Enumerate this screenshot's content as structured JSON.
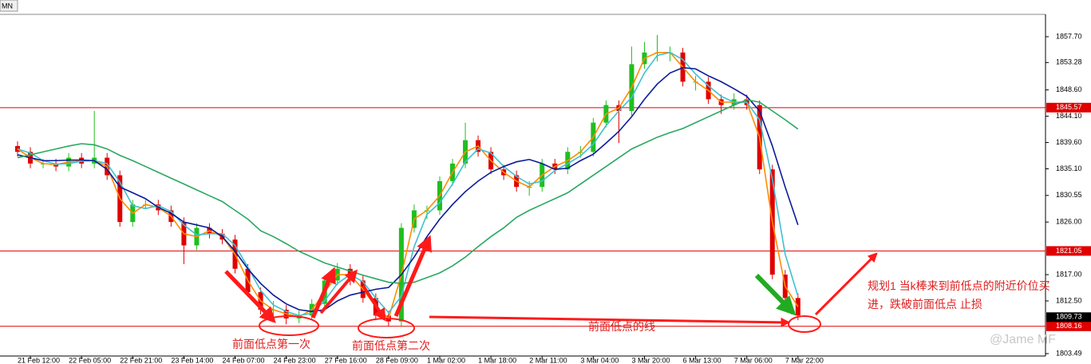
{
  "chart_data": {
    "type": "candlestick",
    "tab": "MN",
    "categories": [
      null,
      "21 Feb 12:00",
      null,
      null,
      null,
      "22 Feb 05:00",
      null,
      null,
      null,
      "22 Feb 21:00",
      null,
      null,
      null,
      "23 Feb 14:00",
      null,
      null,
      null,
      "24 Feb 07:00",
      null,
      null,
      null,
      "24 Feb 23:00",
      null,
      null,
      null,
      "27 Feb 16:00",
      null,
      null,
      null,
      "28 Feb 09:00",
      null,
      null,
      null,
      "1 Mar 02:00",
      null,
      null,
      null,
      "1 Mar 18:00",
      null,
      null,
      null,
      "2 Mar 11:00",
      null,
      null,
      null,
      "3 Mar 04:00",
      null,
      null,
      null,
      "3 Mar 20:00",
      null,
      null,
      null,
      "6 Mar 13:00",
      null,
      null,
      null,
      "7 Mar 06:00",
      null,
      null,
      null,
      "7 Mar 22:00"
    ],
    "open": [
      1839,
      1838,
      1836,
      1836,
      1835.5,
      1837,
      1836,
      1837,
      1834,
      1826,
      1829,
      1829,
      1828,
      1826,
      1822,
      1825,
      1824,
      1823,
      1818,
      1814,
      1811,
      1811,
      1809.5,
      1810,
      1812,
      1816,
      1818,
      1816,
      1813,
      1810,
      1809,
      1825,
      1828,
      1828,
      1833,
      1836,
      1840,
      1838,
      1835,
      1834,
      1832,
      1832,
      1836,
      1835,
      1838,
      1838,
      1843,
      1846,
      1845,
      1853,
      1855,
      1855,
      1855,
      1850,
      1850,
      1847,
      1846,
      1847,
      1846,
      1835,
      1817,
      1813
    ],
    "high": [
      1839.8,
      1838.8,
      1836.8,
      1836.8,
      1837.8,
      1837.8,
      1845,
      1837.8,
      1834.8,
      1829.8,
      1829.8,
      1829.8,
      1828.8,
      1826.8,
      1825.8,
      1825.8,
      1824.8,
      1823.8,
      1818.8,
      1814.8,
      1812.5,
      1811.8,
      1810.8,
      1812.8,
      1816.8,
      1819,
      1818.8,
      1816.8,
      1813.8,
      1810.8,
      1825.8,
      1829,
      1828.8,
      1833.8,
      1836.8,
      1843,
      1840.8,
      1838.8,
      1835.8,
      1834.8,
      1833,
      1836.8,
      1836.8,
      1838.8,
      1839,
      1843.8,
      1846.8,
      1846.8,
      1856,
      1856.8,
      1858,
      1856,
      1855.8,
      1851,
      1850.8,
      1847.8,
      1848,
      1847.8,
      1846.8,
      1835.8,
      1817.8,
      1813.8
    ],
    "low": [
      1837.2,
      1835.2,
      1835.2,
      1834.7,
      1834.7,
      1835.2,
      1835.2,
      1833.2,
      1825.2,
      1825.2,
      1828.2,
      1827.2,
      1825.2,
      1818.8,
      1821.2,
      1823.2,
      1822.2,
      1817.2,
      1813.2,
      1810.2,
      1809.5,
      1808.5,
      1808.7,
      1809.2,
      1811.2,
      1815.2,
      1815.2,
      1812.2,
      1809.2,
      1808.2,
      1808.2,
      1824.2,
      1826.5,
      1827.2,
      1832.2,
      1835.2,
      1837.2,
      1834.2,
      1833.2,
      1831.2,
      1830.5,
      1831.2,
      1834.2,
      1834.2,
      1837,
      1837.2,
      1842.2,
      1839.5,
      1844.2,
      1852.2,
      1853.5,
      1853.5,
      1849.2,
      1848.5,
      1846.2,
      1844.5,
      1845.2,
      1845.2,
      1834.2,
      1816.2,
      1812.2,
      1809.2
    ],
    "close": [
      1838,
      1836,
      1836,
      1835.5,
      1837,
      1836,
      1837,
      1834,
      1826,
      1829,
      1829,
      1828,
      1826,
      1822,
      1825,
      1824,
      1823,
      1818,
      1814,
      1811,
      1811,
      1809.5,
      1810,
      1812,
      1816,
      1818,
      1816,
      1813,
      1810,
      1809,
      1825,
      1828,
      1828,
      1833,
      1836,
      1840,
      1838,
      1835,
      1834,
      1832,
      1832,
      1836,
      1835,
      1838,
      1838,
      1843,
      1846,
      1845,
      1853,
      1855,
      1855,
      1855,
      1850,
      1850,
      1847,
      1846,
      1847,
      1846,
      1835,
      1817,
      1813,
      1810
    ],
    "up_color": "#1fbf1f",
    "down_color": "#e00000",
    "moving_averages": [
      {
        "color": "#ff8c00",
        "values": [
          1838.5,
          1837,
          1836,
          1835.8,
          1836.3,
          1836.5,
          1836.5,
          1835.5,
          1830,
          1827.5,
          1829,
          1828.5,
          1827,
          1824,
          1823.5,
          1824.5,
          1823.5,
          1820.5,
          1816,
          1812.5,
          1811,
          1810.3,
          1809.8,
          1811,
          1814,
          1817,
          1817,
          1814.5,
          1811.5,
          1809.5,
          1817,
          1826.5,
          1828,
          1830.5,
          1834.5,
          1838,
          1839,
          1836.5,
          1834.5,
          1833,
          1832,
          1834,
          1835.5,
          1836.5,
          1838,
          1840.5,
          1844.5,
          1845.5,
          1849,
          1854,
          1855,
          1855,
          1852.5,
          1850,
          1848.5,
          1846.5,
          1846.5,
          1846.5,
          1840.5,
          1826,
          1815,
          1811.5
        ]
      },
      {
        "color": "#40c0d0",
        "values": [
          1838.5,
          1837.8,
          1836.5,
          1835.9,
          1836,
          1836.4,
          1836.5,
          1836,
          1832.8,
          1828.8,
          1828.3,
          1828.8,
          1827.8,
          1825.5,
          1823.8,
          1824,
          1824,
          1822,
          1818.3,
          1814.3,
          1811.8,
          1810.7,
          1810,
          1810.4,
          1812.5,
          1815.5,
          1817,
          1815.8,
          1813,
          1810.5,
          1813.3,
          1821.8,
          1827.3,
          1829.3,
          1832.5,
          1836.3,
          1838.5,
          1837.8,
          1835.5,
          1833.8,
          1832.5,
          1833,
          1834.8,
          1836,
          1837.3,
          1839.3,
          1842.5,
          1845,
          1847.3,
          1851.5,
          1854.5,
          1855,
          1853.8,
          1851.3,
          1849.3,
          1847.5,
          1846.5,
          1846.5,
          1843.5,
          1833.3,
          1820.5,
          1813.3
        ]
      },
      {
        "color": "#0a1a9a",
        "values": [
          1837.5,
          1837,
          1836.5,
          1836.5,
          1836.6,
          1836.6,
          1836.5,
          1835,
          1832,
          1831,
          1830,
          1828.5,
          1827.5,
          1826,
          1825.5,
          1825,
          1823.5,
          1821,
          1818,
          1815.5,
          1813.5,
          1812,
          1811,
          1810.7,
          1811,
          1812.5,
          1813.5,
          1814,
          1814.5,
          1814.8,
          1817,
          1820,
          1823.5,
          1826.5,
          1829,
          1831.2,
          1833,
          1834.5,
          1835.5,
          1836.3,
          1836.7,
          1836,
          1835,
          1835.2,
          1836.5,
          1837.6,
          1839.5,
          1841.5,
          1844,
          1847,
          1849.6,
          1851.5,
          1852.4,
          1852.2,
          1851,
          1850,
          1848.8,
          1847.5,
          1845,
          1839,
          1832,
          1825.5
        ]
      },
      {
        "color": "#2aa860",
        "values": [
          1837,
          1837.5,
          1838,
          1838.5,
          1839,
          1839.4,
          1839.2,
          1838.5,
          1837.4,
          1836.5,
          1835.5,
          1834.5,
          1833.5,
          1832.5,
          1831.5,
          1830.5,
          1829.5,
          1828,
          1826.5,
          1824.5,
          1823.5,
          1822.3,
          1821,
          1820,
          1819,
          1818.3,
          1817.6,
          1816.9,
          1816.3,
          1815.7,
          1815.5,
          1815.7,
          1816.5,
          1817.3,
          1818.5,
          1820,
          1821.8,
          1823.5,
          1825,
          1826.8,
          1828,
          1829,
          1830,
          1831,
          1832.5,
          1834,
          1835.5,
          1837,
          1838.5,
          1839.5,
          1840.5,
          1841.3,
          1842,
          1843,
          1844,
          1845,
          1846,
          1846.9,
          1846.5,
          1845,
          1843.5,
          1841.9
        ]
      }
    ],
    "ylim": [
      1803.08,
      1861.52
    ],
    "yticks": [
      {
        "value": 1803.49,
        "label": "1803.49"
      },
      {
        "value": 1812.5,
        "label": "1812.50"
      },
      {
        "value": 1817,
        "label": "1817.00"
      },
      {
        "value": 1826,
        "label": "1826.00"
      },
      {
        "value": 1830.55,
        "label": "1830.55"
      },
      {
        "value": 1835.1,
        "label": "1835.10"
      },
      {
        "value": 1839.6,
        "label": "1839.60"
      },
      {
        "value": 1844.1,
        "label": "1844.10"
      },
      {
        "value": 1848.6,
        "label": "1848.60"
      },
      {
        "value": 1853.28,
        "label": "1853.28"
      },
      {
        "value": 1857.7,
        "label": "1857.70"
      }
    ],
    "levels": [
      {
        "value": 1845.57,
        "label": "1845.57"
      },
      {
        "value": 1821.05,
        "label": "1821.05"
      },
      {
        "value": 1808.16,
        "label": "1808.16"
      }
    ],
    "current_price": {
      "value": 1809.73,
      "label": "1809.73"
    },
    "annotations": {
      "first_low": "前面低点第一次",
      "second_low": "前面低点第二次",
      "low_line": "前面低点的线",
      "plan": [
        "规划1 当k棒来到前低点的附近价位买",
        "进，跌破前面低点 止损"
      ],
      "watermark": "@Jame MF"
    }
  }
}
